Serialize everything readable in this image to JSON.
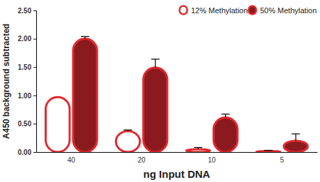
{
  "chart_data": {
    "type": "bar",
    "x_label": "ng Input DNA",
    "y_label": "A450 background subtracted",
    "categories": [
      "40",
      "20",
      "10",
      "5"
    ],
    "series": [
      {
        "name": "12% Methylation",
        "color": "#ffffff",
        "values": [
          0.97,
          0.37,
          0.05,
          0.02
        ],
        "errors": [
          0,
          0.02,
          0.03,
          0.01
        ]
      },
      {
        "name": "50% Methylation",
        "color": "#8b1a1f",
        "values": [
          2.0,
          1.49,
          0.61,
          0.2
        ],
        "errors": [
          0.04,
          0.15,
          0.06,
          0.12
        ]
      }
    ],
    "ylim": [
      0,
      2.5
    ],
    "yticks": [
      {
        "value": 0,
        "label": "0.00"
      },
      {
        "value": 0.5,
        "label": "0.50"
      },
      {
        "value": 1,
        "label": "1.00"
      },
      {
        "value": 1.5,
        "label": "1.50"
      },
      {
        "value": 2,
        "label": "2.00"
      },
      {
        "value": 2.5,
        "label": "2.50"
      }
    ],
    "legend": "top-right"
  }
}
